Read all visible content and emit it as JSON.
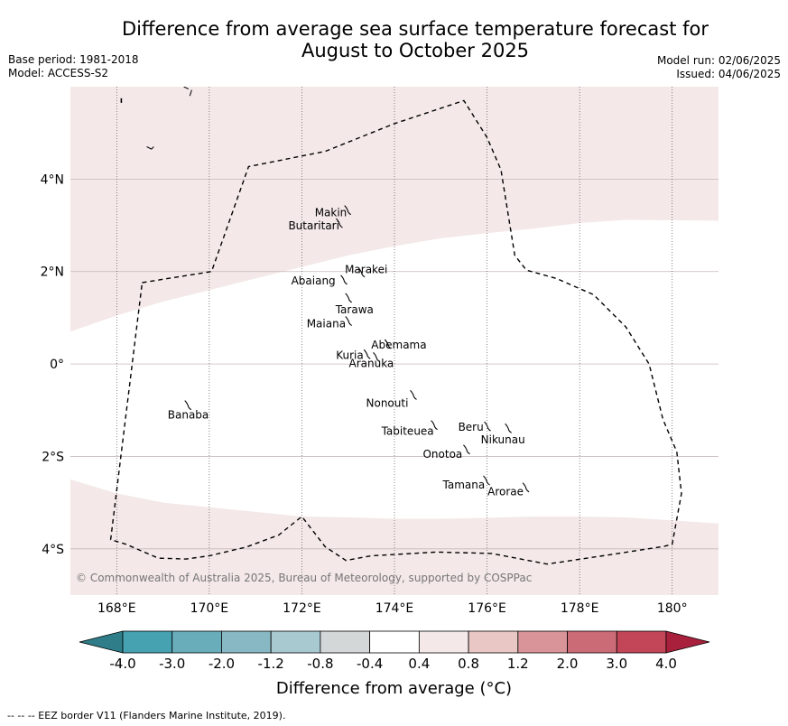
{
  "header": {
    "title_line1": "Difference from average sea surface temperature forecast for",
    "title_line2": "August to October 2025",
    "base_period": "Base period: 1981-2018",
    "model": "Model: ACCESS-S2",
    "model_run": "Model run: 02/06/2025",
    "issued": "Issued: 04/06/2025"
  },
  "map": {
    "lon_range": [
      167.0,
      181.0
    ],
    "lat_range": [
      -5.0,
      6.0
    ],
    "lon_ticks": [
      168,
      170,
      172,
      174,
      176,
      178,
      180
    ],
    "lon_tick_labels": [
      "168°E",
      "170°E",
      "172°E",
      "174°E",
      "176°E",
      "178°E",
      "180°"
    ],
    "lat_ticks": [
      4,
      2,
      0,
      -2,
      -4
    ],
    "lat_tick_labels": [
      "4°N",
      "2°N",
      "0°",
      "2°S",
      "4°S"
    ],
    "colors": {
      "ocean_base": "#ffffff",
      "warm_light": "#f4e8e8",
      "gridline": "#c8b8b8",
      "lon_gridline": "#555555",
      "eez": "#000000",
      "land": "#000000"
    },
    "islands": [
      {
        "name": "Makin",
        "lon": 172.98,
        "lat": 3.35
      },
      {
        "name": "Butaritari",
        "lon": 172.8,
        "lat": 3.07
      },
      {
        "name": "Marakei",
        "lon": 173.28,
        "lat": 2.0
      },
      {
        "name": "Abaiang",
        "lon": 172.9,
        "lat": 1.84
      },
      {
        "name": "Tarawa",
        "lon": 173.0,
        "lat": 1.45
      },
      {
        "name": "Maiana",
        "lon": 173.0,
        "lat": 0.95
      },
      {
        "name": "Abemama",
        "lon": 173.85,
        "lat": 0.45
      },
      {
        "name": "Kuria",
        "lon": 173.4,
        "lat": 0.23
      },
      {
        "name": "Aranuka",
        "lon": 173.6,
        "lat": 0.17
      },
      {
        "name": "Nonouti",
        "lon": 174.4,
        "lat": -0.65
      },
      {
        "name": "Banaba",
        "lon": 169.53,
        "lat": -0.87
      },
      {
        "name": "Tabiteuea",
        "lon": 174.85,
        "lat": -1.3
      },
      {
        "name": "Beru",
        "lon": 176.0,
        "lat": -1.33
      },
      {
        "name": "Nikunau",
        "lon": 176.45,
        "lat": -1.37
      },
      {
        "name": "Onotoa",
        "lon": 175.55,
        "lat": -1.83
      },
      {
        "name": "Tamana",
        "lon": 175.98,
        "lat": -2.5
      },
      {
        "name": "Arorae",
        "lon": 176.83,
        "lat": -2.65
      }
    ],
    "copyright": "© Commonwealth of Australia 2025, Bureau of Meteorology, supported by COSPPac"
  },
  "colorbar": {
    "ticks": [
      "-4.0",
      "-3.0",
      "-2.0",
      "-1.2",
      "-0.8",
      "-0.4",
      "0.4",
      "0.8",
      "1.2",
      "2.0",
      "3.0",
      "4.0"
    ],
    "colors": [
      "#2e7d88",
      "#46a1b0",
      "#6aadba",
      "#88b8c3",
      "#a8c9cf",
      "#d4d7d8",
      "#ffffff",
      "#f4e8e8",
      "#e9c7c5",
      "#d9949a",
      "#cb6b76",
      "#c24658",
      "#a8203b"
    ],
    "label": "Difference from average (°C)"
  },
  "footer": {
    "eez_legend": "--  --  -- EEZ border V11 (Flanders Marine Institute, 2019)."
  }
}
